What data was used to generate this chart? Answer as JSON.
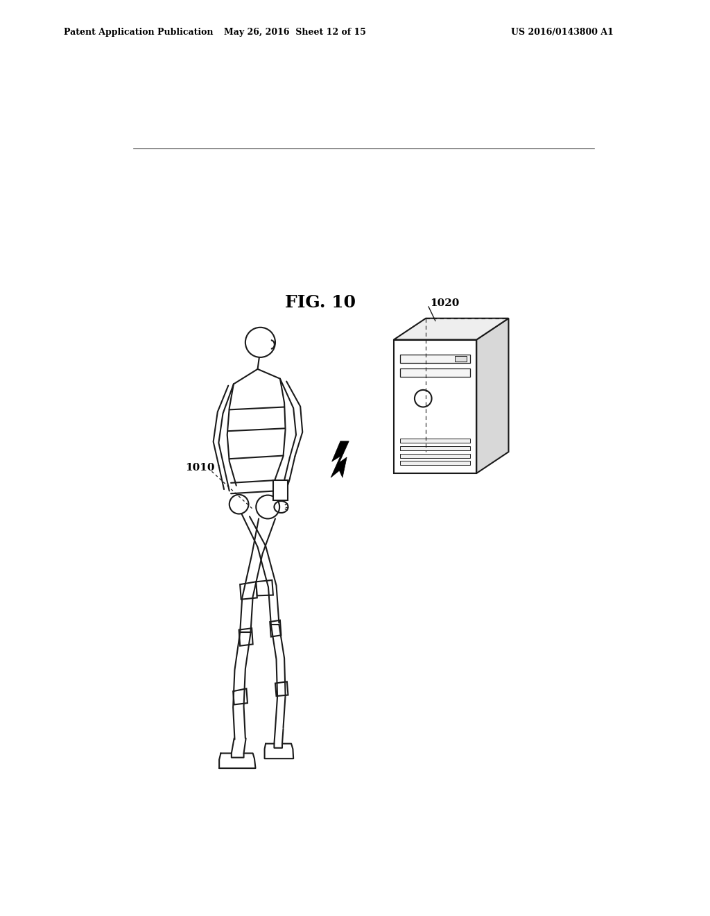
{
  "title": "FIG. 10",
  "title_fontsize": 16,
  "header_left": "Patent Application Publication",
  "header_mid": "May 26, 2016  Sheet 12 of 15",
  "header_right": "US 2016/0143800 A1",
  "label_1010": "1010",
  "label_1020": "1020",
  "background_color": "#ffffff",
  "line_color": "#1a1a1a",
  "figure_width": 10.24,
  "figure_height": 13.2
}
